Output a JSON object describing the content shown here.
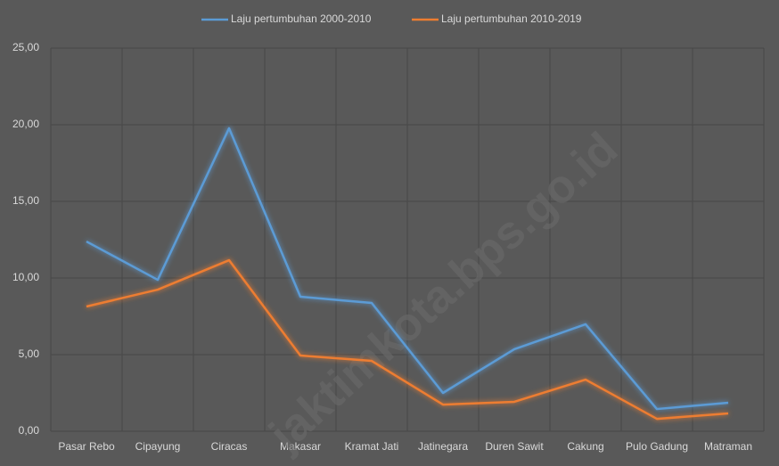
{
  "chart_data": {
    "type": "line",
    "watermark": "jaktimkota.bps.go.id",
    "categories": [
      "Pasar Rebo",
      "Cipayung",
      "Ciracas",
      "Makasar",
      "Kramat Jati",
      "Jatinegara",
      "Duren Sawit",
      "Cakung",
      "Pulo Gadung",
      "Matraman"
    ],
    "series": [
      {
        "name": "Laju pertumbuhan 2000-2010",
        "color": "#5b9bd5",
        "values": [
          12.38,
          9.88,
          19.77,
          8.78,
          8.37,
          2.5,
          5.35,
          6.98,
          1.45,
          1.86
        ]
      },
      {
        "name": "Laju pertumbuhan 2010-2019",
        "color": "#ed7d31",
        "values": [
          8.14,
          9.24,
          11.16,
          4.94,
          4.59,
          1.74,
          1.92,
          3.37,
          0.81,
          1.16
        ]
      }
    ],
    "ylim": [
      0,
      25
    ],
    "yticks": [
      {
        "value": 0,
        "label": "0,00"
      },
      {
        "value": 5,
        "label": "5,00"
      },
      {
        "value": 10,
        "label": "10,00"
      },
      {
        "value": 15,
        "label": "15,00"
      },
      {
        "value": 20,
        "label": "20,00"
      },
      {
        "value": 25,
        "label": "25,00"
      }
    ],
    "grid": true,
    "legend": "top"
  }
}
